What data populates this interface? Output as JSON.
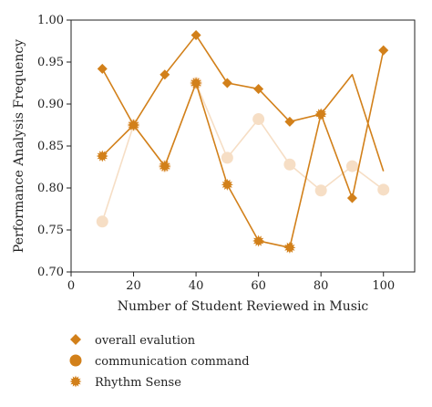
{
  "chart_data": {
    "type": "line",
    "xlabel": "Number of Student Reviewed in Music",
    "ylabel": "Performance Analysis Frequency",
    "xlim": [
      0,
      110
    ],
    "ylim": [
      0.7,
      1.0
    ],
    "x_ticks": [
      "0",
      "20",
      "40",
      "60",
      "80",
      "100"
    ],
    "x_tick_values": [
      0,
      20,
      40,
      60,
      80,
      100
    ],
    "y_ticks": [
      "0.70",
      "0.75",
      "0.80",
      "0.85",
      "0.90",
      "0.95",
      "1.00"
    ],
    "y_tick_values": [
      0.7,
      0.75,
      0.8,
      0.85,
      0.9,
      0.95,
      1.0
    ],
    "grid": false,
    "legend_position": "bottom",
    "series": [
      {
        "name": "overall evalution",
        "marker": "diamond",
        "color": "#d2801a",
        "line_color": "#d2801a",
        "x": [
          10,
          20,
          30,
          40,
          50,
          60,
          70,
          80,
          90,
          100
        ],
        "y": [
          0.942,
          0.875,
          0.935,
          0.982,
          0.925,
          0.918,
          0.879,
          0.888,
          0.788,
          0.964
        ]
      },
      {
        "name": "communication command",
        "marker": "circle",
        "color": "#f6dec5",
        "line_color": "#f6dec5",
        "x": [
          10,
          20,
          30,
          40,
          50,
          60,
          70,
          80,
          90,
          100
        ],
        "y": [
          0.76,
          0.875,
          0.826,
          0.925,
          0.836,
          0.882,
          0.828,
          0.797,
          0.826,
          0.798
        ]
      },
      {
        "name": "Rhythm Sense",
        "marker": "starburst",
        "color": "#d2801a",
        "line_color": "#d2801a",
        "x": [
          10,
          20,
          30,
          40,
          50,
          60,
          70,
          80,
          90,
          100
        ],
        "y": [
          0.838,
          0.875,
          0.826,
          0.925,
          0.804,
          0.737,
          0.729,
          0.888,
          0.935,
          0.82
        ],
        "marker_points": [
          0,
          1,
          2,
          3,
          4,
          5,
          6,
          7
        ]
      }
    ],
    "legend": [
      {
        "label": "overall evalution",
        "marker": "diamond",
        "color": "#d2801a"
      },
      {
        "label": "communication command",
        "marker": "circle",
        "color": "#d2801a"
      },
      {
        "label": "Rhythm Sense",
        "marker": "starburst",
        "color": "#d2801a"
      }
    ]
  }
}
